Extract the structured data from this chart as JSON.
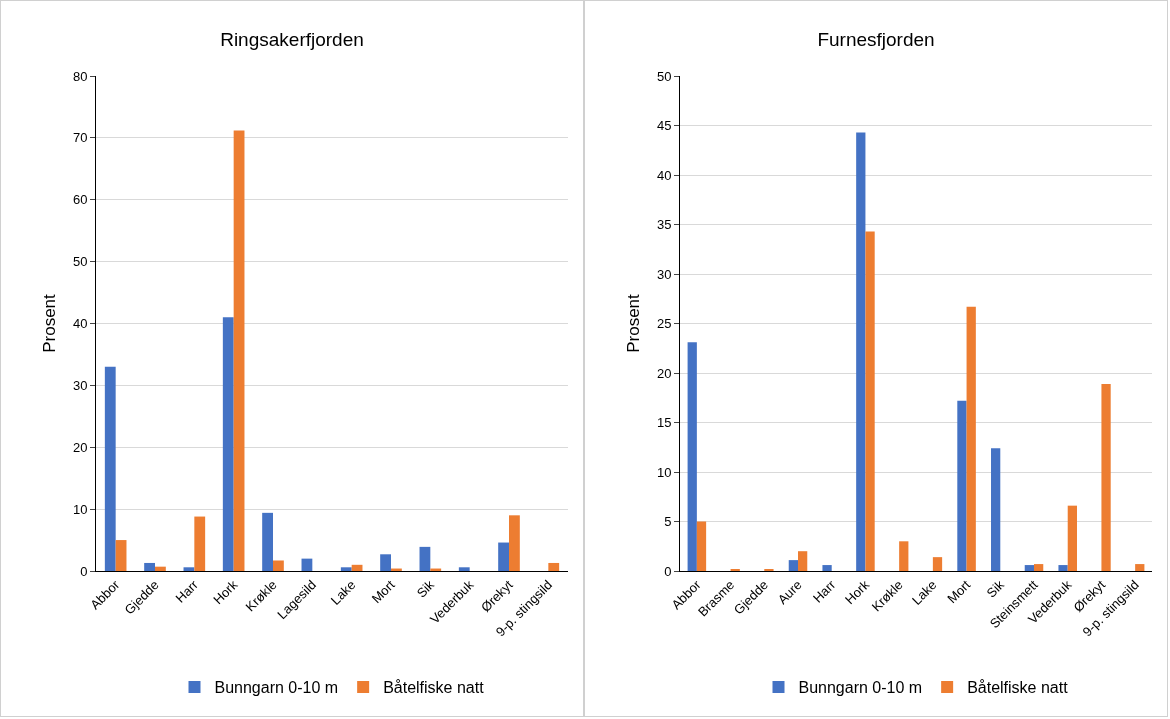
{
  "chart_data": [
    {
      "type": "bar",
      "title": "Ringsakerfjorden",
      "ylabel": "Prosent",
      "categories": [
        "Abbor",
        "Gjedde",
        "Harr",
        "Hork",
        "Krøkle",
        "Lagesild",
        "Lake",
        "Mort",
        "Sik",
        "Vederbuk",
        "Ørekyt",
        "9-p. stingsild"
      ],
      "series": [
        {
          "name": "Bunngarn 0-10 m",
          "color": "#4472c4",
          "values": [
            33,
            1.3,
            0.6,
            41,
            9.4,
            2.0,
            0.6,
            2.7,
            3.9,
            0.6,
            4.6,
            0
          ]
        },
        {
          "name": "Båtelfiske natt",
          "color": "#ed7d31",
          "values": [
            5,
            0.7,
            8.8,
            71.2,
            1.7,
            0,
            1.0,
            0.4,
            0.4,
            0,
            9.0,
            1.3
          ]
        }
      ],
      "ylim": [
        0,
        80
      ],
      "yticks": [
        0,
        10,
        20,
        30,
        40,
        50,
        60,
        70,
        80
      ],
      "grid": "y",
      "legend": "bottom"
    },
    {
      "type": "bar",
      "title": "Furnesfjorden",
      "ylabel": "Prosent",
      "categories": [
        "Abbor",
        "Brasme",
        "Gjedde",
        "Aure",
        "Harr",
        "Hork",
        "Krøkle",
        "Lake",
        "Mort",
        "Sik",
        "Steinsmett",
        "Vederbuk",
        "Ørekyt",
        "9-p. stingsild"
      ],
      "series": [
        {
          "name": "Bunngarn 0-10 m",
          "color": "#4472c4",
          "values": [
            23.1,
            0,
            0,
            1.1,
            0.6,
            44.3,
            0,
            0,
            17.2,
            12.4,
            0.6,
            0.6,
            0,
            0
          ]
        },
        {
          "name": "Båtelfiske natt",
          "color": "#ed7d31",
          "values": [
            5.0,
            0.2,
            0.2,
            2.0,
            0,
            34.3,
            3.0,
            1.4,
            26.7,
            0,
            0.7,
            6.6,
            18.9,
            0.7
          ]
        }
      ],
      "ylim": [
        0,
        50
      ],
      "yticks": [
        0,
        5,
        10,
        15,
        20,
        25,
        30,
        35,
        40,
        45,
        50
      ],
      "grid": "y",
      "legend": "bottom"
    }
  ]
}
